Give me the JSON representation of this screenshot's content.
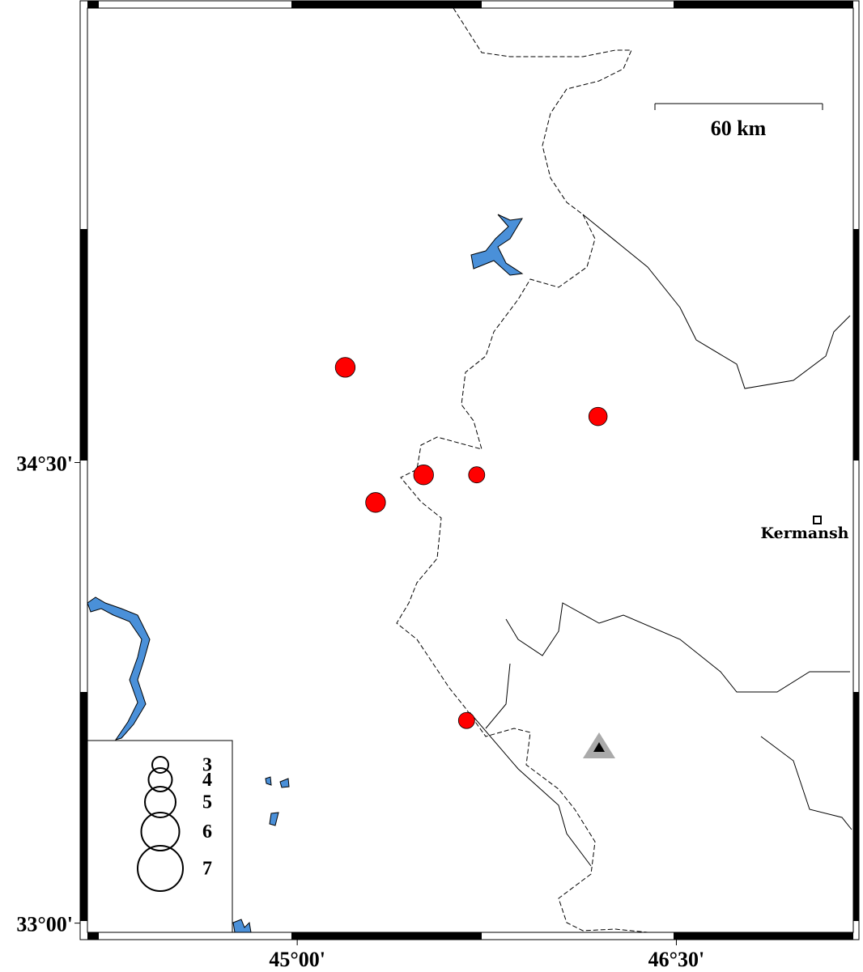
{
  "map": {
    "lonlim": [
      44.17,
      47.2
    ],
    "latlim": [
      32.97,
      35.98
    ],
    "lonticks": [
      {
        "value": 45,
        "label": "45°00'"
      },
      {
        "value": 46.5,
        "label": "46°30'"
      }
    ],
    "latticks": [
      {
        "value": 34.5,
        "label": "34°30'"
      },
      {
        "value": 33,
        "label": "33°00'"
      }
    ],
    "scale_label": "60 km",
    "city": "Kermansh",
    "event_color": "#ff0000",
    "events": [
      {
        "lon": 45.19,
        "lat": 34.81,
        "mag": 3.5
      },
      {
        "lon": 46.19,
        "lat": 34.65,
        "mag": 3.3
      },
      {
        "lon": 45.5,
        "lat": 34.46,
        "mag": 3.5
      },
      {
        "lon": 45.71,
        "lat": 34.46,
        "mag": 3.0
      },
      {
        "lon": 45.31,
        "lat": 34.37,
        "mag": 3.5
      },
      {
        "lon": 45.67,
        "lat": 33.66,
        "mag": 3.0
      }
    ],
    "legend_magnitudes": [
      3,
      4,
      5,
      6,
      7
    ]
  }
}
